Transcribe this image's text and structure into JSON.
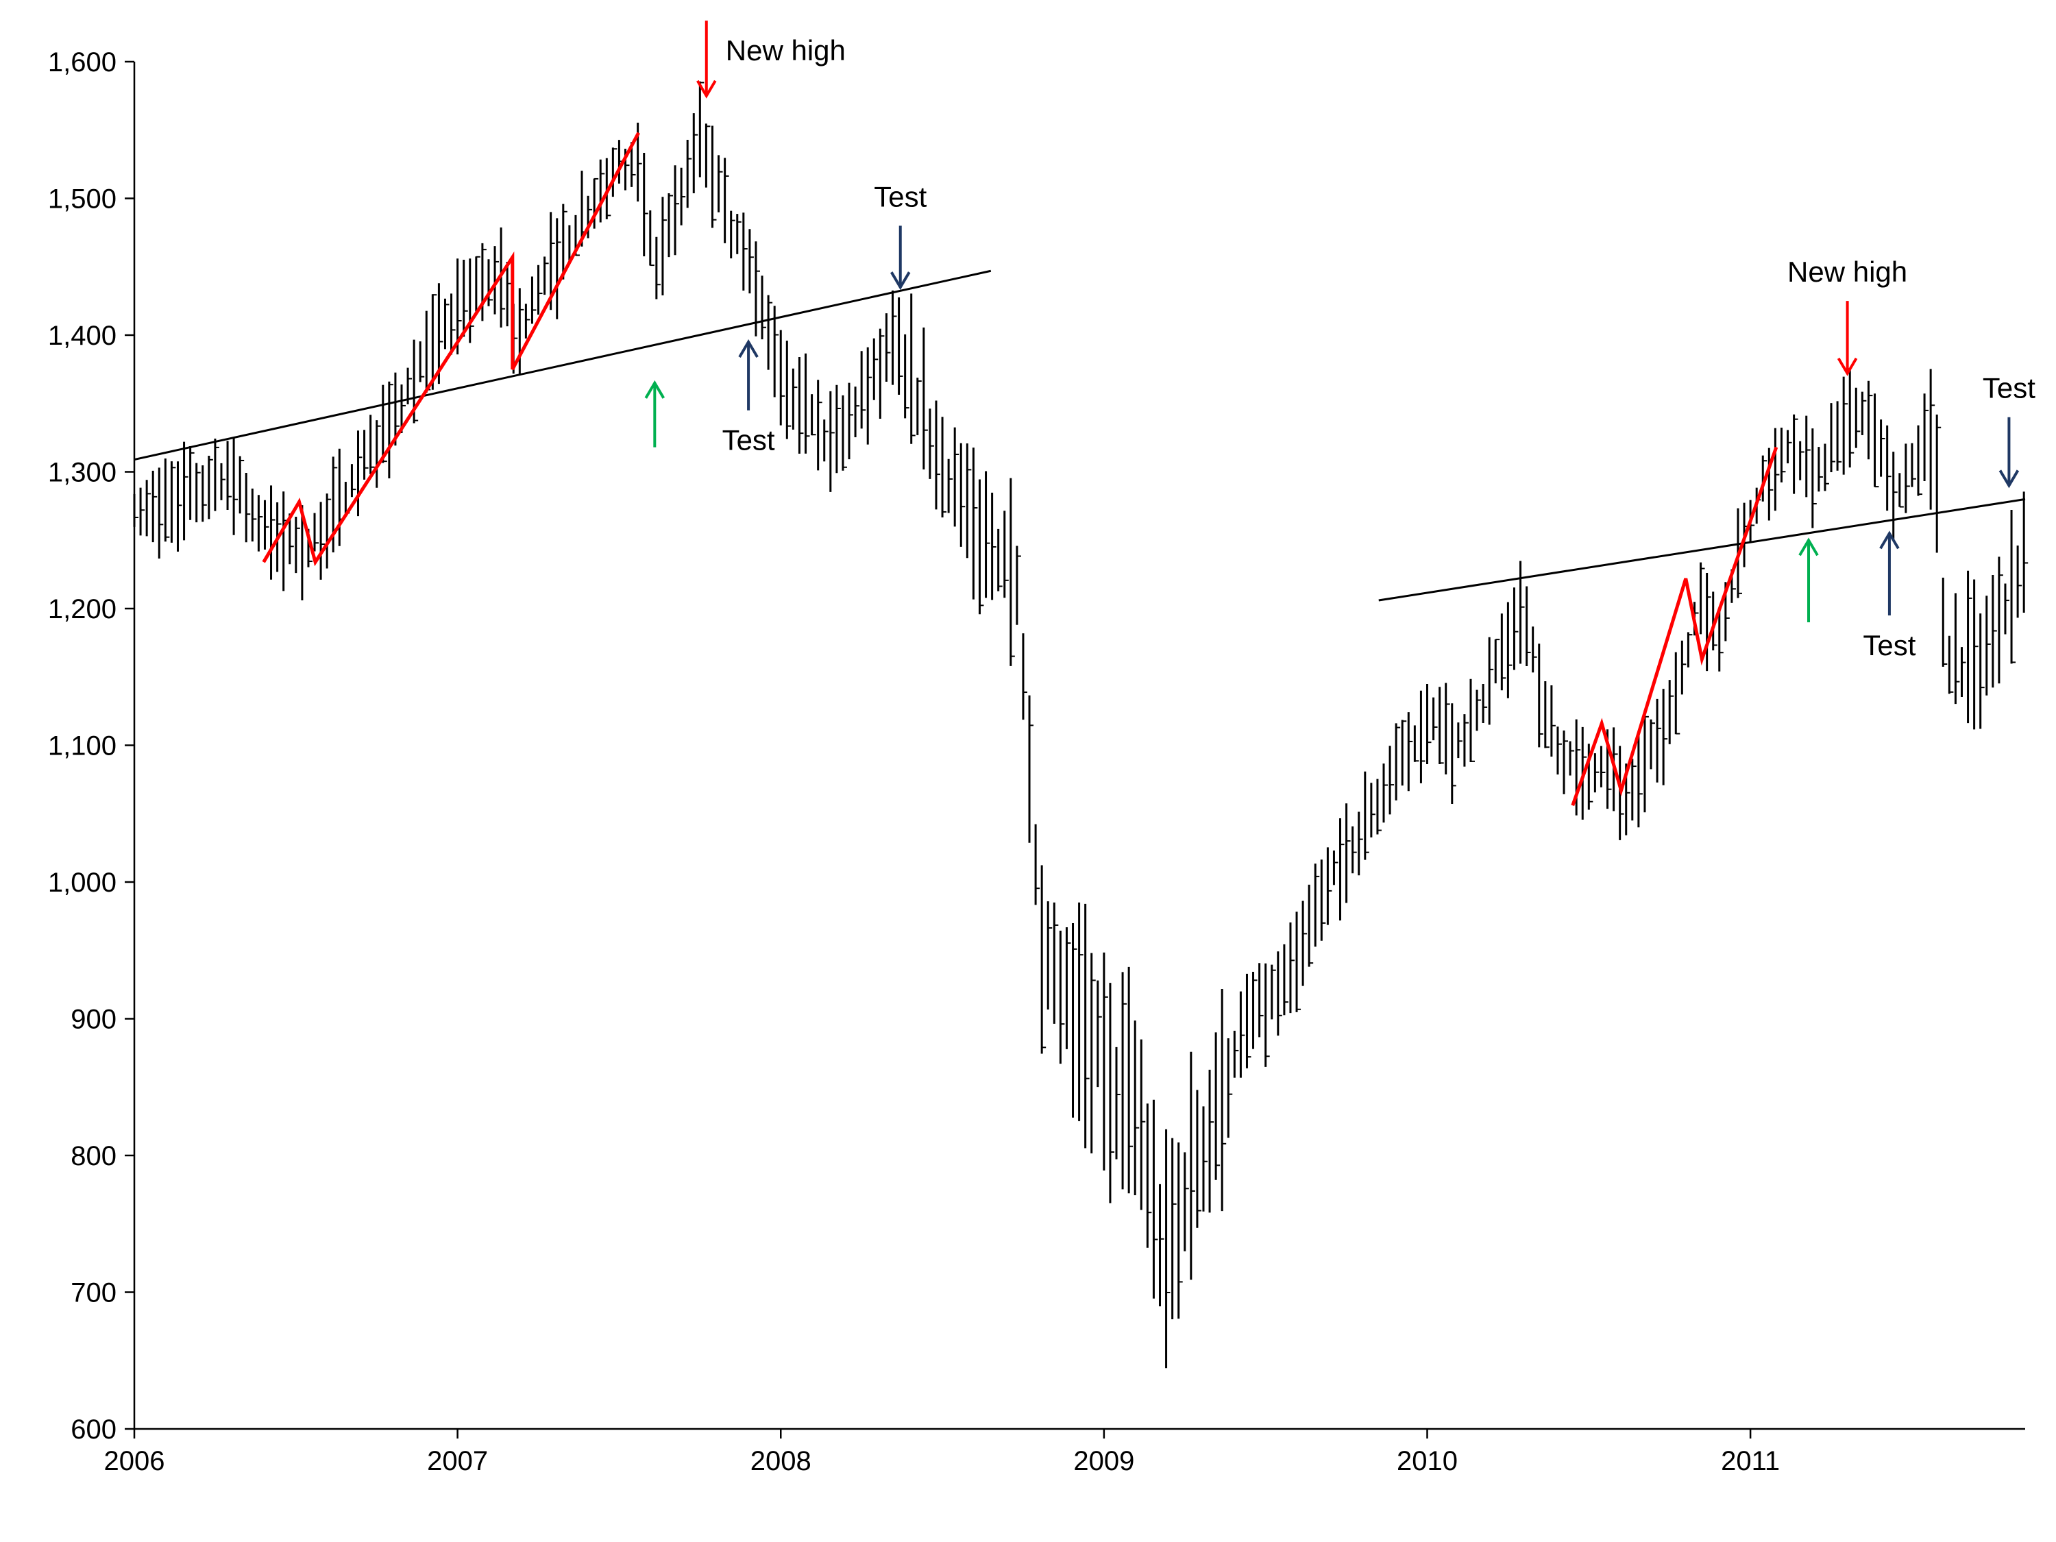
{
  "chart_data": {
    "type": "bar",
    "subtype": "ohlc-range-bars",
    "title": "",
    "xlabel": "",
    "ylabel": "",
    "ylim": [
      600,
      1600
    ],
    "xlim": [
      2006.0,
      2011.85
    ],
    "grid": false,
    "legend": "none",
    "yticks": [
      600,
      700,
      800,
      900,
      1000,
      1100,
      1200,
      1300,
      1400,
      1500,
      1600
    ],
    "ytick_labels": [
      "600",
      "700",
      "800",
      "900",
      "1,000",
      "1,100",
      "1,200",
      "1,300",
      "1,400",
      "1,500",
      "1,600"
    ],
    "xticks": [
      2006,
      2007,
      2008,
      2009,
      2010,
      2011
    ],
    "xtick_labels": [
      "2006",
      "2007",
      "2008",
      "2009",
      "2010",
      "2011"
    ],
    "anchors": [
      [
        2006.0,
        1265
      ],
      [
        2006.3,
        1300
      ],
      [
        2006.4,
        1255
      ],
      [
        2006.55,
        1245
      ],
      [
        2006.8,
        1340
      ],
      [
        2007.0,
        1420
      ],
      [
        2007.15,
        1445
      ],
      [
        2007.17,
        1395
      ],
      [
        2007.35,
        1475
      ],
      [
        2007.55,
        1535
      ],
      [
        2007.62,
        1450
      ],
      [
        2007.75,
        1545
      ],
      [
        2007.85,
        1475
      ],
      [
        2007.92,
        1440
      ],
      [
        2008.0,
        1375
      ],
      [
        2008.15,
        1320
      ],
      [
        2008.25,
        1355
      ],
      [
        2008.35,
        1395
      ],
      [
        2008.5,
        1310
      ],
      [
        2008.6,
        1255
      ],
      [
        2008.72,
        1240
      ],
      [
        2008.75,
        1140
      ],
      [
        2008.8,
        950
      ],
      [
        2008.9,
        900
      ],
      [
        2009.0,
        870
      ],
      [
        2009.1,
        835
      ],
      [
        2009.18,
        720
      ],
      [
        2009.3,
        810
      ],
      [
        2009.45,
        900
      ],
      [
        2009.55,
        920
      ],
      [
        2009.7,
        1000
      ],
      [
        2009.85,
        1060
      ],
      [
        2010.0,
        1120
      ],
      [
        2010.1,
        1095
      ],
      [
        2010.25,
        1175
      ],
      [
        2010.3,
        1205
      ],
      [
        2010.35,
        1130
      ],
      [
        2010.45,
        1080
      ],
      [
        2010.55,
        1090
      ],
      [
        2010.62,
        1060
      ],
      [
        2010.75,
        1120
      ],
      [
        2010.85,
        1205
      ],
      [
        2010.9,
        1180
      ],
      [
        2011.0,
        1270
      ],
      [
        2011.12,
        1325
      ],
      [
        2011.2,
        1300
      ],
      [
        2011.3,
        1335
      ],
      [
        2011.35,
        1345
      ],
      [
        2011.45,
        1280
      ],
      [
        2011.55,
        1330
      ],
      [
        2011.58,
        1290
      ],
      [
        2011.6,
        1170
      ],
      [
        2011.7,
        1160
      ],
      [
        2011.75,
        1180
      ],
      [
        2011.8,
        1220
      ],
      [
        2011.85,
        1240
      ]
    ],
    "trend_lines": [
      {
        "color": "#000000",
        "points": [
          [
            2006.0,
            1309
          ],
          [
            2008.65,
            1447
          ]
        ]
      },
      {
        "color": "#000000",
        "points": [
          [
            2009.85,
            1206
          ],
          [
            2011.85,
            1280
          ]
        ]
      }
    ],
    "zigzags": [
      {
        "color": "#ff0000",
        "points": [
          [
            2006.4,
            1234
          ],
          [
            2006.51,
            1278
          ],
          [
            2006.56,
            1234
          ],
          [
            2007.17,
            1457
          ],
          [
            2007.17,
            1375
          ],
          [
            2007.56,
            1548
          ]
        ]
      },
      {
        "color": "#ff0000",
        "points": [
          [
            2010.45,
            1056
          ],
          [
            2010.54,
            1116
          ],
          [
            2010.6,
            1067
          ],
          [
            2010.8,
            1222
          ],
          [
            2010.85,
            1163
          ],
          [
            2011.08,
            1318
          ]
        ]
      }
    ],
    "annotations": [
      {
        "text": "New high",
        "arrow": "down",
        "color": "#ff0000",
        "x": 2007.77,
        "tip": 1575,
        "tail": 1630,
        "label_side": "right"
      },
      {
        "text": "Test",
        "arrow": "down",
        "color": "#1f3864",
        "x": 2008.37,
        "tip": 1435,
        "tail": 1480,
        "label_side": "above"
      },
      {
        "text": "",
        "arrow": "up",
        "color": "#00b050",
        "x": 2007.61,
        "tip": 1365,
        "tail": 1318,
        "label_side": "none"
      },
      {
        "text": "Test",
        "arrow": "up",
        "color": "#1f3864",
        "x": 2007.9,
        "tip": 1395,
        "tail": 1345,
        "label_side": "below"
      },
      {
        "text": "New high",
        "arrow": "down",
        "color": "#ff0000",
        "x": 2011.3,
        "tip": 1372,
        "tail": 1425,
        "label_side": "above"
      },
      {
        "text": "Test",
        "arrow": "down",
        "color": "#1f3864",
        "x": 2011.8,
        "tip": 1290,
        "tail": 1340,
        "label_side": "above"
      },
      {
        "text": "",
        "arrow": "up",
        "color": "#00b050",
        "x": 2011.18,
        "tip": 1250,
        "tail": 1190,
        "label_side": "none"
      },
      {
        "text": "Test",
        "arrow": "up",
        "color": "#1f3864",
        "x": 2011.43,
        "tip": 1255,
        "tail": 1195,
        "label_side": "below"
      }
    ],
    "colors": {
      "bars": "#000000",
      "axis": "#000000"
    }
  }
}
